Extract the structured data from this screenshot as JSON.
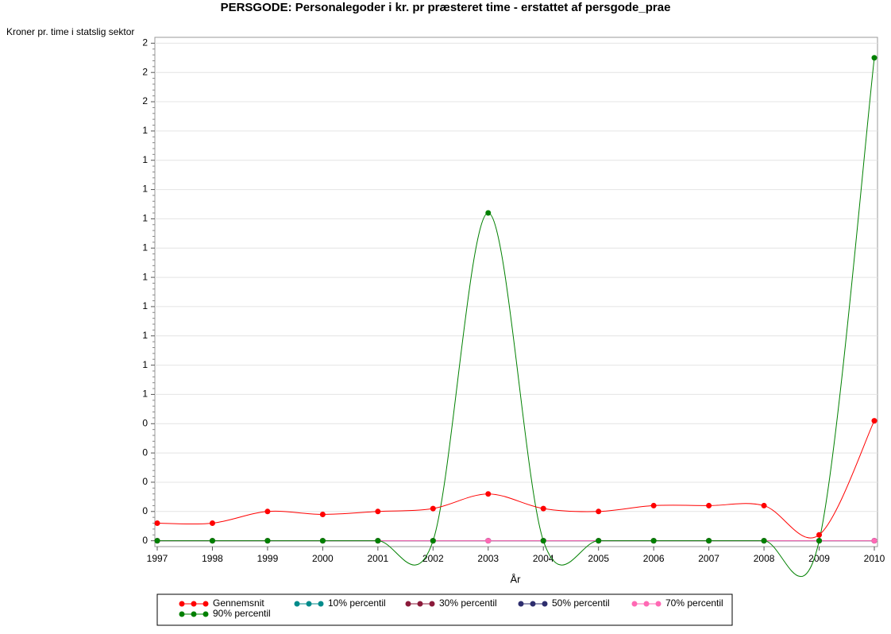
{
  "chart_data": {
    "type": "line",
    "title": "PERSGODE: Personalegoder i kr. pr præsteret time - erstattet af persgode_prae",
    "y_label": "Kroner pr. time i statslig sektor",
    "x_label": "År",
    "x": [
      1997,
      1998,
      1999,
      2000,
      2001,
      2002,
      2003,
      2004,
      2005,
      2006,
      2007,
      2008,
      2009,
      2010
    ],
    "xlim": [
      1997,
      2010
    ],
    "xticks": [
      1997,
      1998,
      1999,
      2000,
      2001,
      2002,
      2003,
      2004,
      2005,
      2006,
      2007,
      2008,
      2009,
      2010
    ],
    "ylim": [
      -0.02,
      1.72
    ],
    "yticks": [
      0,
      {
        "value": 0.1,
        "label": "0"
      },
      {
        "value": 0.2,
        "label": "0"
      },
      {
        "value": 0.3,
        "label": "0"
      },
      {
        "value": 0.4,
        "label": "0"
      },
      {
        "value": 0.5,
        "label": "1"
      },
      {
        "value": 0.6,
        "label": "1"
      },
      {
        "value": 0.7,
        "label": "1"
      },
      {
        "value": 0.8,
        "label": "1"
      },
      {
        "value": 0.9,
        "label": "1"
      },
      {
        "value": 1.0,
        "label": "1"
      },
      {
        "value": 1.1,
        "label": "1"
      },
      {
        "value": 1.2,
        "label": "1"
      },
      {
        "value": 1.3,
        "label": "1"
      },
      {
        "value": 1.4,
        "label": "1"
      },
      {
        "value": 1.5,
        "label": "2"
      },
      {
        "value": 1.6,
        "label": "2"
      },
      {
        "value": 1.7,
        "label": "2"
      }
    ],
    "grid": true,
    "series": [
      {
        "name": "Gennemsnit",
        "color": "#ff0000",
        "values": [
          0.06,
          0.06,
          0.1,
          0.09,
          0.1,
          0.11,
          0.16,
          0.11,
          0.1,
          0.12,
          0.12,
          0.12,
          0.02,
          0.41
        ]
      },
      {
        "name": "10% percentil",
        "color": "#008b8b",
        "values": [
          0,
          0,
          0,
          0,
          0,
          0,
          0,
          0,
          0,
          0,
          0,
          0,
          0,
          0
        ]
      },
      {
        "name": "30% percentil",
        "color": "#8b1a3a",
        "values": [
          0,
          0,
          0,
          0,
          0,
          0,
          0,
          0,
          0,
          0,
          0,
          0,
          0,
          0
        ]
      },
      {
        "name": "50% percentil",
        "color": "#2e2e6e",
        "values": [
          0,
          0,
          0,
          0,
          0,
          0,
          0,
          0,
          0,
          0,
          0,
          0,
          0,
          0
        ]
      },
      {
        "name": "70% percentil",
        "color": "#ff69b4",
        "values": [
          0,
          0,
          0,
          0,
          0,
          0,
          0,
          0,
          0,
          0,
          0,
          0,
          0,
          0
        ]
      },
      {
        "name": "90% percentil",
        "color": "#008000",
        "values": [
          0,
          0,
          0,
          0,
          0,
          0,
          1.12,
          0,
          0,
          0,
          0,
          0,
          0,
          1.65
        ]
      }
    ]
  }
}
